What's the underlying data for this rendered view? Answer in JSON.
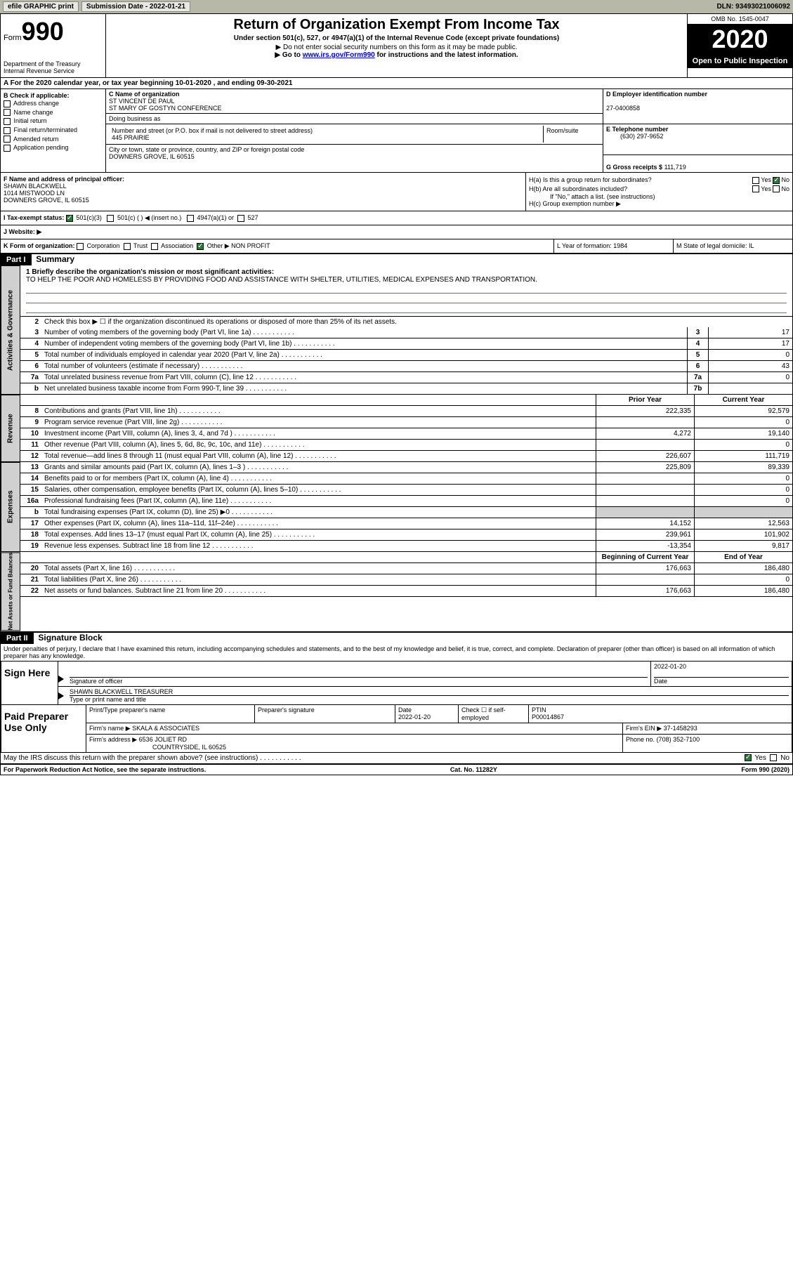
{
  "topbar": {
    "efile": "efile GRAPHIC print",
    "submission": "Submission Date - 2022-01-21",
    "dln": "DLN: 93493021006092"
  },
  "header": {
    "form_prefix": "Form",
    "form_num": "990",
    "dept": "Department of the Treasury\nInternal Revenue Service",
    "title": "Return of Organization Exempt From Income Tax",
    "subtitle": "Under section 501(c), 527, or 4947(a)(1) of the Internal Revenue Code (except private foundations)",
    "note1": "▶ Do not enter social security numbers on this form as it may be made public.",
    "note2_pre": "▶ Go to ",
    "note2_link": "www.irs.gov/Form990",
    "note2_post": " for instructions and the latest information.",
    "omb": "OMB No. 1545-0047",
    "year": "2020",
    "open": "Open to Public Inspection"
  },
  "period": "For the 2020 calendar year, or tax year beginning 10-01-2020   , and ending 09-30-2021",
  "sectionB": {
    "label": "B Check if applicable:",
    "items": [
      "Address change",
      "Name change",
      "Initial return",
      "Final return/terminated",
      "Amended return",
      "Application pending"
    ]
  },
  "sectionC": {
    "label": "C Name of organization",
    "name1": "ST VINCENT DE PAUL",
    "name2": "ST MARY OF GOSTYN CONFERENCE",
    "dba_label": "Doing business as",
    "addr_label": "Number and street (or P.O. box if mail is not delivered to street address)",
    "addr": "445 PRAIRIE",
    "room_label": "Room/suite",
    "city_label": "City or town, state or province, country, and ZIP or foreign postal code",
    "city": "DOWNERS GROVE, IL  60515"
  },
  "sectionD": {
    "label": "D Employer identification number",
    "ein": "27-0400858"
  },
  "sectionE": {
    "label": "E Telephone number",
    "phone": "(630) 297-9652"
  },
  "sectionG": {
    "label": "G Gross receipts $",
    "amount": "111,719"
  },
  "sectionF": {
    "label": "F  Name and address of principal officer:",
    "name": "SHAWN BLACKWELL",
    "addr1": "1014 MISTWOOD LN",
    "addr2": "DOWNERS GROVE, IL  60515"
  },
  "sectionH": {
    "a_label": "H(a)  Is this a group return for subordinates?",
    "b_label": "H(b)  Are all subordinates included?",
    "b_note": "If \"No,\" attach a list. (see instructions)",
    "c_label": "H(c)  Group exemption number ▶",
    "yes": "Yes",
    "no": "No"
  },
  "sectionI": {
    "label": "I   Tax-exempt status:",
    "opts": [
      "501(c)(3)",
      "501(c) (  ) ◀ (insert no.)",
      "4947(a)(1) or",
      "527"
    ]
  },
  "sectionJ": "J   Website: ▶",
  "sectionK": {
    "label": "K Form of organization:",
    "opts": [
      "Corporation",
      "Trust",
      "Association",
      "Other ▶"
    ],
    "other": "NON PROFIT",
    "L": "L Year of formation: 1984",
    "M": "M State of legal domicile: IL"
  },
  "part1": {
    "header": "Part I",
    "title": "Summary",
    "side1": "Activities & Governance",
    "side2": "Revenue",
    "side3": "Expenses",
    "side4": "Net Assets or Fund Balances",
    "line1_label": "1  Briefly describe the organization's mission or most significant activities:",
    "mission": "TO HELP THE POOR AND HOMELESS BY PROVIDING FOOD AND ASSISTANCE WITH SHELTER, UTILITIES, MEDICAL EXPENSES AND TRANSPORTATION.",
    "line2": "Check this box ▶ ☐  if the organization discontinued its operations or disposed of more than 25% of its net assets.",
    "lines_gov": [
      {
        "n": "3",
        "t": "Number of voting members of the governing body (Part VI, line 1a)",
        "b": "3",
        "v": "17"
      },
      {
        "n": "4",
        "t": "Number of independent voting members of the governing body (Part VI, line 1b)",
        "b": "4",
        "v": "17"
      },
      {
        "n": "5",
        "t": "Total number of individuals employed in calendar year 2020 (Part V, line 2a)",
        "b": "5",
        "v": "0"
      },
      {
        "n": "6",
        "t": "Total number of volunteers (estimate if necessary)",
        "b": "6",
        "v": "43"
      },
      {
        "n": "7a",
        "t": "Total unrelated business revenue from Part VIII, column (C), line 12",
        "b": "7a",
        "v": "0"
      },
      {
        "n": "b",
        "t": "Net unrelated business taxable income from Form 990-T, line 39",
        "b": "7b",
        "v": ""
      }
    ],
    "col_prior": "Prior Year",
    "col_current": "Current Year",
    "lines_rev": [
      {
        "n": "8",
        "t": "Contributions and grants (Part VIII, line 1h)",
        "p": "222,335",
        "c": "92,579"
      },
      {
        "n": "9",
        "t": "Program service revenue (Part VIII, line 2g)",
        "p": "",
        "c": "0"
      },
      {
        "n": "10",
        "t": "Investment income (Part VIII, column (A), lines 3, 4, and 7d )",
        "p": "4,272",
        "c": "19,140"
      },
      {
        "n": "11",
        "t": "Other revenue (Part VIII, column (A), lines 5, 6d, 8c, 9c, 10c, and 11e)",
        "p": "",
        "c": "0"
      },
      {
        "n": "12",
        "t": "Total revenue—add lines 8 through 11 (must equal Part VIII, column (A), line 12)",
        "p": "226,607",
        "c": "111,719"
      }
    ],
    "lines_exp": [
      {
        "n": "13",
        "t": "Grants and similar amounts paid (Part IX, column (A), lines 1–3 )",
        "p": "225,809",
        "c": "89,339"
      },
      {
        "n": "14",
        "t": "Benefits paid to or for members (Part IX, column (A), line 4)",
        "p": "",
        "c": "0"
      },
      {
        "n": "15",
        "t": "Salaries, other compensation, employee benefits (Part IX, column (A), lines 5–10)",
        "p": "",
        "c": "0"
      },
      {
        "n": "16a",
        "t": "Professional fundraising fees (Part IX, column (A), line 11e)",
        "p": "",
        "c": "0"
      },
      {
        "n": "b",
        "t": "Total fundraising expenses (Part IX, column (D), line 25) ▶0",
        "p": "shaded",
        "c": "shaded"
      },
      {
        "n": "17",
        "t": "Other expenses (Part IX, column (A), lines 11a–11d, 11f–24e)",
        "p": "14,152",
        "c": "12,563"
      },
      {
        "n": "18",
        "t": "Total expenses. Add lines 13–17 (must equal Part IX, column (A), line 25)",
        "p": "239,961",
        "c": "101,902"
      },
      {
        "n": "19",
        "t": "Revenue less expenses. Subtract line 18 from line 12",
        "p": "-13,354",
        "c": "9,817"
      }
    ],
    "col_begin": "Beginning of Current Year",
    "col_end": "End of Year",
    "lines_net": [
      {
        "n": "20",
        "t": "Total assets (Part X, line 16)",
        "p": "176,663",
        "c": "186,480"
      },
      {
        "n": "21",
        "t": "Total liabilities (Part X, line 26)",
        "p": "",
        "c": "0"
      },
      {
        "n": "22",
        "t": "Net assets or fund balances. Subtract line 21 from line 20",
        "p": "176,663",
        "c": "186,480"
      }
    ]
  },
  "part2": {
    "header": "Part II",
    "title": "Signature Block",
    "declare": "Under penalties of perjury, I declare that I have examined this return, including accompanying schedules and statements, and to the best of my knowledge and belief, it is true, correct, and complete. Declaration of preparer (other than officer) is based on all information of which preparer has any knowledge.",
    "sign_here": "Sign Here",
    "sig_officer": "Signature of officer",
    "sig_date": "Date",
    "sig_date_val": "2022-01-20",
    "sig_name": "SHAWN BLACKWELL TREASURER",
    "sig_name_label": "Type or print name and title",
    "paid": "Paid Preparer Use Only",
    "prep_name_label": "Print/Type preparer's name",
    "prep_sig_label": "Preparer's signature",
    "prep_date_label": "Date",
    "prep_date": "2022-01-20",
    "prep_check": "Check ☐ if self-employed",
    "ptin_label": "PTIN",
    "ptin": "P00014867",
    "firm_name_label": "Firm's name    ▶",
    "firm_name": "SKALA & ASSOCIATES",
    "firm_ein_label": "Firm's EIN ▶",
    "firm_ein": "37-1458293",
    "firm_addr_label": "Firm's address ▶",
    "firm_addr1": "6536 JOLIET RD",
    "firm_addr2": "COUNTRYSIDE, IL  60525",
    "phone_label": "Phone no.",
    "phone": "(708) 352-7100",
    "discuss": "May the IRS discuss this return with the preparer shown above? (see instructions)",
    "yes": "Yes",
    "no": "No"
  },
  "footer": {
    "left": "For Paperwork Reduction Act Notice, see the separate instructions.",
    "mid": "Cat. No. 11282Y",
    "right": "Form 990 (2020)"
  }
}
